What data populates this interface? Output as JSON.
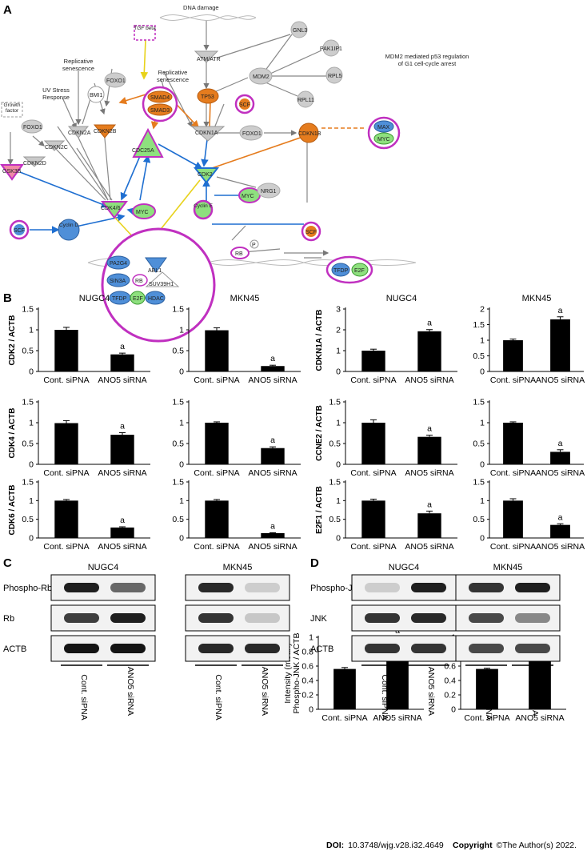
{
  "panels": {
    "a": "A",
    "b": "B",
    "c": "C",
    "d": "D"
  },
  "network": {
    "nodes": {
      "dna_damage": "DNA damage",
      "atm_atr": "ATM/ATR",
      "gnl3": "GNL3",
      "pak1ip1": "PAK1IP1",
      "mdm2": "MDM2",
      "rpl5": "RPL5",
      "rpl11": "RPL11",
      "mdm2_note": "MDM2 mediated p53 regulation of G1 cell-cycle arrest",
      "tgfb": "TGF beta",
      "repl_sen_1": "Replicative senescence",
      "repl_sen_2": "Replicative senescence",
      "tp53": "TP53",
      "foxo1_a": "FOXO1",
      "bmi1": "BMI1",
      "uv_stress": "UV Stress Response",
      "smad4": "SMAD4",
      "smad3": "SMAD3",
      "scf_a": "SCF",
      "growth_factor": "Growth factor",
      "foxo1_b": "FOXO1",
      "cdkn2a": "CDKN2A",
      "cdkn2b": "CDKN2B",
      "cdkn1a": "CDKN1A",
      "foxo1_c": "FOXO1",
      "cdkn1b": "CDKN1B",
      "max": "MAX",
      "myc_a": "MYC",
      "cdkn2c": "CDKN2C",
      "cdkn2d": "CDKN2D",
      "cdc25a": "CDC25A",
      "cdk2": "CDK2",
      "gsk3b": "GSK3B",
      "cdk46": "CDK4/6",
      "myc_b": "MYC",
      "myc_c": "MYC",
      "nrg1": "NRG1",
      "scf_b": "SCF",
      "cyclin_d": "Cyclin D",
      "cyclin_e": "Cyclin E",
      "scf_c": "SCF",
      "p": "P",
      "rb_a": "RB",
      "pa2g4": "PA2G4",
      "sin3a": "SIN3A",
      "rb_b": "RB",
      "abl1": "ABL1",
      "suv39h1": "SUV39H1",
      "tfdp": "TFDP",
      "e2f_a": "E2F",
      "hdac": "HDAC",
      "tfdp_b": "TFDP",
      "e2f_b": "E2F"
    }
  },
  "chart_data": [
    {
      "type": "bar",
      "title": "NUGC4",
      "ylabel": "CDK2 / ACTB",
      "categories": [
        "Cont. siPNA",
        "ANO5 siRNA"
      ],
      "values": [
        1.0,
        0.41
      ],
      "errors": [
        0.06,
        0.03
      ],
      "ylim": [
        0,
        1.5
      ],
      "yticks": [
        "0",
        "0.5",
        "1",
        "1.5"
      ],
      "annotations": [
        "",
        "a"
      ]
    },
    {
      "type": "bar",
      "title": "MKN45",
      "ylabel": "",
      "categories": [
        "Cont. siPNA",
        "ANO5 siRNA"
      ],
      "values": [
        0.99,
        0.13
      ],
      "errors": [
        0.06,
        0.02
      ],
      "ylim": [
        0,
        1.5
      ],
      "yticks": [
        "0",
        "0.5",
        "1",
        "1.5"
      ],
      "annotations": [
        "",
        "a"
      ]
    },
    {
      "type": "bar",
      "title": "NUGC4",
      "ylabel": "CDKN1A / ACTB",
      "categories": [
        "Cont. siPNA",
        "ANO5 siRNA"
      ],
      "values": [
        1.0,
        1.93
      ],
      "errors": [
        0.07,
        0.08
      ],
      "ylim": [
        0,
        3
      ],
      "yticks": [
        "0",
        "1",
        "2",
        "3"
      ],
      "annotations": [
        "",
        "a"
      ]
    },
    {
      "type": "bar",
      "title": "MKN45",
      "ylabel": "",
      "categories": [
        "Cont. siPNA",
        "ANO5 siRNA"
      ],
      "values": [
        1.0,
        1.67
      ],
      "errors": [
        0.04,
        0.08
      ],
      "ylim": [
        0,
        2
      ],
      "yticks": [
        "0",
        "0.5",
        "1",
        "1.5",
        "2"
      ],
      "annotations": [
        "",
        "a"
      ]
    },
    {
      "type": "bar",
      "title": "",
      "ylabel": "CDK4 / ACTB",
      "categories": [
        "Cont. siPNA",
        "ANO5 siRNA"
      ],
      "values": [
        0.99,
        0.71
      ],
      "errors": [
        0.06,
        0.05
      ],
      "ylim": [
        0,
        1.5
      ],
      "yticks": [
        "0",
        "0.5",
        "1",
        "1.5"
      ],
      "annotations": [
        "",
        "a"
      ]
    },
    {
      "type": "bar",
      "title": "",
      "ylabel": "",
      "categories": [
        "Cont. siPNA",
        "ANO5 siRNA"
      ],
      "values": [
        1.0,
        0.39
      ],
      "errors": [
        0.02,
        0.03
      ],
      "ylim": [
        0,
        1.5
      ],
      "yticks": [
        "0",
        "0.5",
        "1",
        "1.5"
      ],
      "annotations": [
        "",
        "a"
      ]
    },
    {
      "type": "bar",
      "title": "",
      "ylabel": "CCNE2 / ACTB",
      "categories": [
        "Cont. siPNA",
        "ANO5 siRNA"
      ],
      "values": [
        1.0,
        0.66
      ],
      "errors": [
        0.07,
        0.04
      ],
      "ylim": [
        0,
        1.5
      ],
      "yticks": [
        "0",
        "0.5",
        "1",
        "1.5"
      ],
      "annotations": [
        "",
        "a"
      ]
    },
    {
      "type": "bar",
      "title": "",
      "ylabel": "",
      "categories": [
        "Cont. siPNA",
        "ANO5 siRNA"
      ],
      "values": [
        1.0,
        0.3
      ],
      "errors": [
        0.02,
        0.05
      ],
      "ylim": [
        0,
        1.5
      ],
      "yticks": [
        "0",
        "0.5",
        "1",
        "1.5"
      ],
      "annotations": [
        "",
        "a"
      ]
    },
    {
      "type": "bar",
      "title": "",
      "ylabel": "CDK6 / ACTB",
      "categories": [
        "Cont. siPNA",
        "ANO5 siRNA"
      ],
      "values": [
        1.0,
        0.28
      ],
      "errors": [
        0.03,
        0.02
      ],
      "ylim": [
        0,
        1.5
      ],
      "yticks": [
        "0",
        "0.5",
        "1",
        "1.5"
      ],
      "annotations": [
        "",
        "a"
      ]
    },
    {
      "type": "bar",
      "title": "",
      "ylabel": "",
      "categories": [
        "Cont. siPNA",
        "ANO5 siRNA"
      ],
      "values": [
        1.0,
        0.13
      ],
      "errors": [
        0.03,
        0.01
      ],
      "ylim": [
        0,
        1.5
      ],
      "yticks": [
        "0",
        "0.5",
        "1",
        "1.5"
      ],
      "annotations": [
        "",
        "a"
      ]
    },
    {
      "type": "bar",
      "title": "",
      "ylabel": "E2F1 / ACTB",
      "categories": [
        "Cont. siPNA",
        "ANO5 siRNA"
      ],
      "values": [
        1.0,
        0.66
      ],
      "errors": [
        0.04,
        0.06
      ],
      "ylim": [
        0,
        1.5
      ],
      "yticks": [
        "0",
        "0.5",
        "1",
        "1.5"
      ],
      "annotations": [
        "",
        "a"
      ]
    },
    {
      "type": "bar",
      "title": "",
      "ylabel": "",
      "categories": [
        "Cont. siPNA",
        "ANO5 siRNA"
      ],
      "values": [
        1.0,
        0.35
      ],
      "errors": [
        0.05,
        0.03
      ],
      "ylim": [
        0,
        1.5
      ],
      "yticks": [
        "0",
        "0.5",
        "1",
        "1.5"
      ],
      "annotations": [
        "",
        "a"
      ]
    },
    {
      "type": "bar",
      "title": "NUGC4",
      "ylabel": "Intensity (mean) Phospho-JNK / ACTB",
      "categories": [
        "Cont. siPNA",
        "ANO5 siRNA"
      ],
      "values": [
        0.56,
        1.0
      ],
      "errors": [
        0.02,
        0.0
      ],
      "ylim": [
        0,
        1
      ],
      "yticks": [
        "0",
        "0.2",
        "0.4",
        "0.6",
        "0.8",
        "1"
      ],
      "annotations": [
        "",
        "a"
      ]
    },
    {
      "type": "bar",
      "title": "MKN45",
      "ylabel": "",
      "categories": [
        "Cont. siPNA",
        "ANO5 siRNA"
      ],
      "values": [
        0.56,
        0.67
      ],
      "errors": [
        0.01,
        0.01
      ],
      "ylim": [
        0,
        1
      ],
      "yticks": [
        "0",
        "0.2",
        "0.4",
        "0.6",
        "0.8",
        "1"
      ],
      "annotations": [
        "",
        "a"
      ]
    }
  ],
  "blots": {
    "c": {
      "cells": [
        "NUGC4",
        "MKN45"
      ],
      "rows": [
        "Phospho-Rb",
        "Rb",
        "ACTB"
      ],
      "lanes": [
        "Cont. siPNA",
        "ANO5 siRNA"
      ],
      "intensity": {
        "NUGC4": [
          [
            0.95,
            0.6
          ],
          [
            0.8,
            0.95
          ],
          [
            1.0,
            1.0
          ]
        ],
        "MKN45": [
          [
            0.9,
            0.12
          ],
          [
            0.85,
            0.15
          ],
          [
            0.9,
            0.9
          ]
        ]
      }
    },
    "d": {
      "cells": [
        "NUGC4",
        "MKN45"
      ],
      "rows": [
        "Phospho-JNK",
        "JNK",
        "ACTB"
      ],
      "lanes": [
        "Cont. siPNA",
        "ANO5 siRNA"
      ],
      "intensity": {
        "NUGC4": [
          [
            0.12,
            0.95
          ],
          [
            0.85,
            0.9
          ],
          [
            0.85,
            0.85
          ]
        ],
        "MKN45": [
          [
            0.85,
            0.95
          ],
          [
            0.75,
            0.45
          ],
          [
            0.75,
            0.75
          ]
        ]
      }
    }
  },
  "footer": {
    "doi_label": "DOI:",
    "doi": "10.3748/wjg.v28.i32.4649",
    "copyright_label": "Copyright",
    "copyright": "©The Author(s) 2022."
  }
}
